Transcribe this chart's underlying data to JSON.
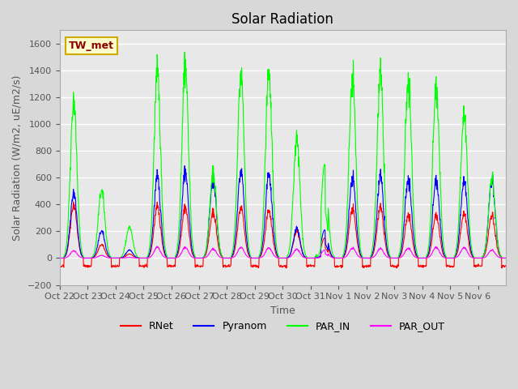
{
  "title": "Solar Radiation",
  "ylabel": "Solar Radiation (W/m2, uE/m2/s)",
  "xlabel": "Time",
  "station_label": "TW_met",
  "ylim": [
    -200,
    1700
  ],
  "yticks": [
    -200,
    0,
    200,
    400,
    600,
    800,
    1000,
    1200,
    1400,
    1600
  ],
  "x_tick_labels": [
    "Oct 22",
    "Oct 23",
    "Oct 24",
    "Oct 25",
    "Oct 26",
    "Oct 27",
    "Oct 28",
    "Oct 29",
    "Oct 30",
    "Oct 31",
    "Nov 1",
    "Nov 2",
    "Nov 3",
    "Nov 4",
    "Nov 5",
    "Nov 6"
  ],
  "colors": {
    "RNet": "#ff0000",
    "Pyranom": "#0000ff",
    "PAR_IN": "#00ff00",
    "PAR_OUT": "#ff00ff"
  },
  "legend_entries": [
    "RNet",
    "Pyranom",
    "PAR_IN",
    "PAR_OUT"
  ],
  "fig_bg_color": "#d8d8d8",
  "plot_bg_color": "#e8e8e8",
  "grid_color": "#ffffff",
  "num_days": 16,
  "points_per_day": 96,
  "par_in_peaks": [
    1180,
    500,
    230,
    1380,
    1450,
    650,
    1380,
    1370,
    880,
    700,
    1350,
    1350,
    1350,
    1270,
    1100,
    600
  ],
  "pyranom_peaks": [
    490,
    200,
    60,
    600,
    650,
    600,
    650,
    620,
    220,
    210,
    600,
    600,
    600,
    580,
    590,
    580
  ],
  "rnet_peaks": [
    400,
    100,
    30,
    380,
    380,
    350,
    380,
    350,
    200,
    150,
    370,
    370,
    330,
    320,
    340,
    320
  ],
  "par_out_peaks": [
    55,
    20,
    5,
    80,
    80,
    70,
    80,
    75,
    65,
    60,
    75,
    70,
    75,
    80,
    80,
    60
  ],
  "rnet_night": -60
}
